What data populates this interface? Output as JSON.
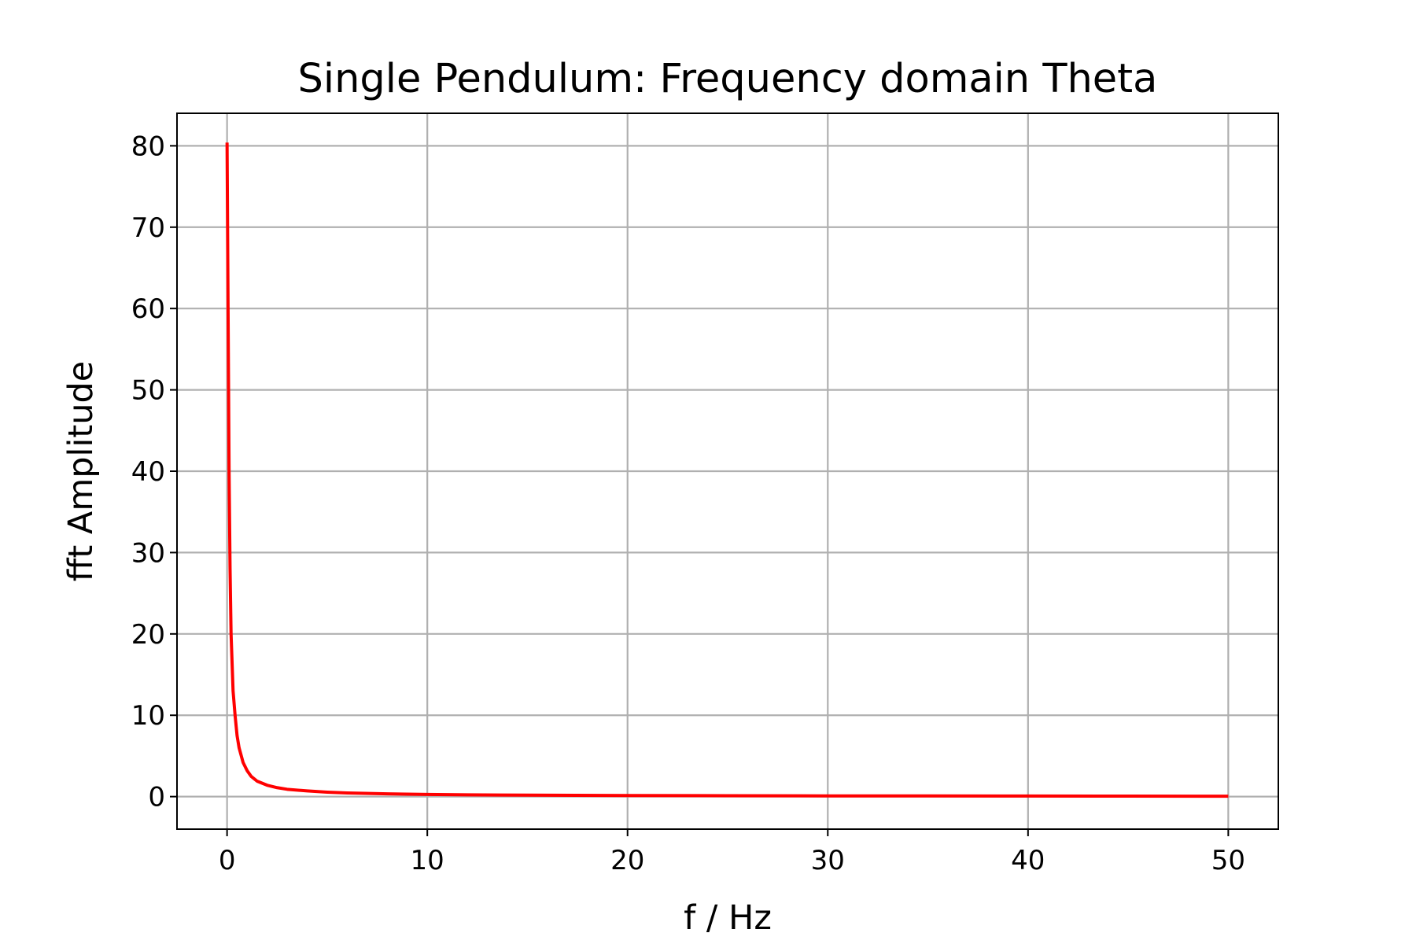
{
  "chart_data": {
    "type": "line",
    "title": "Single Pendulum: Frequency domain Theta",
    "xlabel": "f / Hz",
    "ylabel": "fft Amplitude",
    "xlim": [
      -2.5,
      52.5
    ],
    "ylim": [
      -4,
      84
    ],
    "x_ticks": [
      0,
      10,
      20,
      30,
      40,
      50
    ],
    "y_ticks": [
      0,
      10,
      20,
      30,
      40,
      50,
      60,
      70,
      80
    ],
    "x_tick_labels": [
      "0",
      "10",
      "20",
      "30",
      "40",
      "50"
    ],
    "y_tick_labels": [
      "0",
      "10",
      "20",
      "30",
      "40",
      "50",
      "60",
      "70",
      "80"
    ],
    "grid": true,
    "legend": "none",
    "series": [
      {
        "color": "#ff0000",
        "x": [
          0,
          0.05,
          0.1,
          0.15,
          0.2,
          0.3,
          0.4,
          0.5,
          0.6,
          0.8,
          1.0,
          1.2,
          1.5,
          2,
          2.5,
          3,
          4,
          5,
          6,
          8,
          10,
          12,
          15,
          20,
          25,
          30,
          35,
          40,
          45,
          50
        ],
        "y": [
          80.4,
          60,
          40,
          28,
          20,
          13,
          10,
          7.5,
          6,
          4.2,
          3.2,
          2.5,
          1.9,
          1.4,
          1.1,
          0.9,
          0.7,
          0.55,
          0.45,
          0.34,
          0.27,
          0.22,
          0.18,
          0.14,
          0.11,
          0.09,
          0.08,
          0.07,
          0.06,
          0.05
        ]
      }
    ]
  }
}
